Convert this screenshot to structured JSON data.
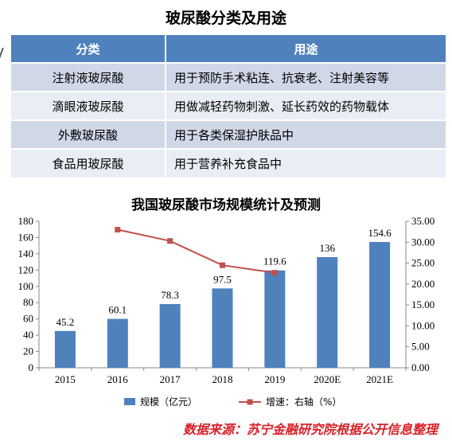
{
  "table": {
    "title": "玻尿酸分类及用途",
    "headers": [
      "分类",
      "用途"
    ],
    "rows": [
      {
        "category": "注射液玻尿酸",
        "use": "用于预防手术粘连、抗衰老、注射美容等"
      },
      {
        "category": "滴眼液玻尿酸",
        "use": "用做减轻药物刺激、延长药效的药物载体"
      },
      {
        "category": "外敷玻尿酸",
        "use": "用于各类保湿护肤品中"
      },
      {
        "category": "食品用玻尿酸",
        "use": "用于营养补充食品中"
      }
    ]
  },
  "chart_data": {
    "type": "bar",
    "title": "我国玻尿酸市场规模统计及预测",
    "categories": [
      "2015",
      "2016",
      "2017",
      "2018",
      "2019",
      "2020E",
      "2021E"
    ],
    "series": [
      {
        "name": "规模（亿元）",
        "type": "bar",
        "axis": "left",
        "values": [
          45.2,
          60.1,
          78.3,
          97.5,
          119.6,
          136,
          154.6
        ],
        "labels": [
          "45.2",
          "60.1",
          "78.3",
          "97.5",
          "119.6",
          "136",
          "154.6"
        ]
      },
      {
        "name": "增速：右轴（%）",
        "type": "line",
        "axis": "right",
        "values": [
          null,
          33.0,
          30.3,
          24.5,
          22.7,
          null,
          null
        ]
      }
    ],
    "y_left": {
      "range": [
        0,
        180
      ],
      "ticks": [
        "0",
        "20",
        "40",
        "60",
        "80",
        "100",
        "120",
        "140",
        "160",
        "180"
      ]
    },
    "y_right": {
      "range": [
        0,
        35
      ],
      "ticks": [
        "0.00",
        "5.00",
        "10.00",
        "15.00",
        "20.00",
        "25.00",
        "30.00",
        "35.00"
      ]
    },
    "grid": false,
    "legend_position": "bottom",
    "colors": {
      "bar": "#4f81bd",
      "line": "#c0504d"
    }
  },
  "source": "数据来源：苏宁金融研究院根据公开信息整理"
}
